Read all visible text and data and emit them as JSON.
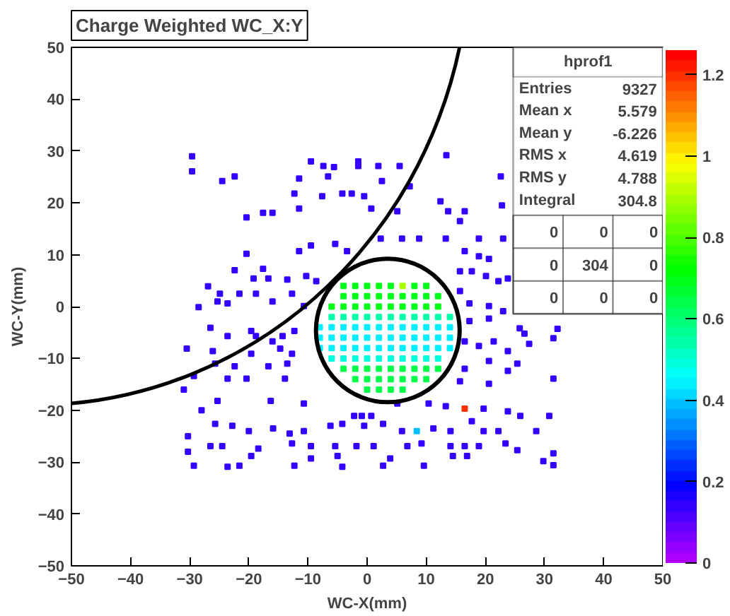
{
  "chart_data": {
    "type": "scatter",
    "title": "Charge Weighted WC_X:Y",
    "xlabel": "WC-X(mm)",
    "ylabel": "WC-Y(mm)",
    "xlim": [
      -50,
      50
    ],
    "ylim": [
      -50,
      50
    ],
    "xticks": [
      -50,
      -40,
      -30,
      -20,
      -10,
      0,
      10,
      20,
      30,
      40,
      50
    ],
    "yticks": [
      -50,
      -40,
      -30,
      -20,
      -10,
      0,
      10,
      20,
      30,
      40,
      50
    ],
    "clim": [
      0,
      1.26
    ],
    "cticks": [
      0,
      0.2,
      0.4,
      0.6,
      0.8,
      1,
      1.2
    ],
    "marker": "square",
    "annotations": [
      "hprof1",
      "Entries",
      "9327",
      "Mean x",
      "5.579",
      "Mean y",
      "-6.226",
      "RMS x",
      "4.619",
      "RMS y",
      "4.788",
      "Integral",
      "304.8",
      "0",
      "0",
      "0",
      "0",
      "304",
      "0",
      "0",
      "0",
      "0"
    ],
    "x": [
      -29.6,
      -29.6,
      -24.5,
      -22.4,
      -9.5,
      -7.4,
      -5.6,
      -1.5,
      -1.5,
      1.9,
      5.5,
      13.4,
      22.6,
      -11.5,
      -6.6,
      2.5,
      7.2,
      -12.3,
      -7.6,
      -4.2,
      -2.6,
      -0.5,
      12.4,
      13.7,
      16.5,
      22.8,
      -11.5,
      -17.6,
      -20.4,
      -16.0,
      0.7,
      5.1,
      15.7,
      2.3,
      5.9,
      8.8,
      13.3,
      18.9,
      23.0,
      -20.4,
      -11.5,
      -9.5,
      -5.4,
      -3.4,
      16.5,
      18.9,
      20.6,
      -22.4,
      -17.6,
      -19.2,
      -16.7,
      -13.5,
      -10.3,
      -8.6,
      15.7,
      17.7,
      20.1,
      22.2,
      23.8,
      -26.9,
      -24.9,
      -21.6,
      -18.8,
      -16.0,
      -12.7,
      15.7,
      17.3,
      20.6,
      -28.5,
      -25.3,
      -23.6,
      -10.7,
      17.3,
      20.6,
      23.0,
      -26.5,
      -23.6,
      -19.6,
      -18.8,
      -16.0,
      -14.3,
      -12.3,
      -30.5,
      -26.1,
      -19.6,
      -14.7,
      -12.7,
      16.5,
      18.9,
      21.4,
      20.6,
      23.8,
      -25.7,
      -22.4,
      -16.7,
      -13.5,
      16.5,
      23.8,
      -29.3,
      -23.6,
      -20.4,
      -13.9,
      15.7,
      20.6,
      -25.3,
      -16.3,
      -10.7,
      -2.2,
      -0.9,
      0.7,
      5.1,
      10.4,
      13.3,
      16.5,
      19.7,
      23.8,
      -25.7,
      -22.8,
      -20.0,
      -15.9,
      -13.1,
      -10.7,
      -6.2,
      -4.2,
      -0.5,
      2.7,
      5.9,
      8.4,
      11.2,
      14.1,
      17.7,
      19.7,
      22.2,
      -26.5,
      -24.5,
      -18.4,
      -12.7,
      -9.5,
      -5.4,
      -1.8,
      1.1,
      6.8,
      9.2,
      14.1,
      16.5,
      18.9,
      23.4,
      -19.6,
      -9.5,
      -5.0,
      3.9,
      14.5,
      16.9,
      -29.3,
      -23.6,
      -21.6,
      -12.3,
      -4.2,
      2.7,
      9.6,
      25.8,
      26.6,
      27.4,
      32.2,
      31.5,
      25.4,
      31.5,
      25.9,
      30.8,
      28.6,
      25.4,
      31.5,
      29.8,
      31.5,
      -30.3,
      -30.3,
      -28.0,
      -31.0,
      -4,
      -2,
      0,
      2,
      4,
      6,
      8,
      10,
      -4,
      -2,
      0,
      2,
      4,
      6,
      8,
      10,
      12,
      -6,
      -4,
      -2,
      0,
      2,
      4,
      6,
      8,
      10,
      12,
      -6,
      -4,
      -2,
      0,
      2,
      4,
      6,
      8,
      10,
      12,
      14,
      -8,
      -6,
      -4,
      -2,
      0,
      2,
      4,
      6,
      8,
      10,
      12,
      14,
      -8,
      -6,
      -4,
      -2,
      0,
      2,
      4,
      6,
      8,
      10,
      12,
      14,
      -8,
      -6,
      -4,
      -2,
      0,
      2,
      4,
      6,
      8,
      10,
      12,
      14,
      -6,
      -4,
      -2,
      0,
      2,
      4,
      6,
      8,
      10,
      12,
      -4,
      -2,
      0,
      2,
      4,
      6,
      8,
      10,
      12,
      -2,
      0,
      2,
      4,
      6,
      8,
      10,
      0,
      2,
      4,
      6
    ],
    "values": [
      29.0,
      26.1,
      24.2,
      25.1,
      28.0,
      27.1,
      26.9,
      28.0,
      27.1,
      27.1,
      27.1,
      29.2,
      25.1,
      24.7,
      25.1,
      24.2,
      23.2,
      21.8,
      21.3,
      21.8,
      21.8,
      21.3,
      20.3,
      18.4,
      18.4,
      19.5,
      18.9,
      18.1,
      17.2,
      18.1,
      18.9,
      18.4,
      16.5,
      13.1,
      13.1,
      13.1,
      13.1,
      13.1,
      13.1,
      10.2,
      10.7,
      11.8,
      12.1,
      10.7,
      10.7,
      9.7,
      9.2,
      7.0,
      7.3,
      5.4,
      5.4,
      5.2,
      5.9,
      4.9,
      6.8,
      6.8,
      5.9,
      4.9,
      5.4,
      3.9,
      2.5,
      2.5,
      2.5,
      1.0,
      2.5,
      3.0,
      0.6,
      0.1,
      -0.1,
      1.0,
      0.6,
      0.1,
      -2.8,
      -2.3,
      -0.9,
      -4.1,
      -5.7,
      -4.7,
      -5.7,
      -6.7,
      -5.7,
      -4.7,
      -8.1,
      -8.6,
      -9.1,
      -8.1,
      -9.1,
      -6.7,
      -7.6,
      -6.7,
      -10.5,
      -8.6,
      -11.0,
      -11.5,
      -11.5,
      -11.0,
      -12.0,
      -12.4,
      -13.4,
      -13.9,
      -13.9,
      -13.9,
      -14.4,
      -14.9,
      -18.2,
      -18.2,
      -18.7,
      -21.1,
      -21.1,
      -21.1,
      -18.7,
      -18.7,
      -19.2,
      -19.7,
      -19.7,
      -20.2,
      -22.6,
      -23.0,
      -24.0,
      -23.5,
      -24.5,
      -24.0,
      -23.0,
      -22.6,
      -23.0,
      -22.6,
      -24.0,
      -24.0,
      -23.5,
      -24.0,
      -22.1,
      -24.0,
      -24.0,
      -26.9,
      -26.9,
      -27.4,
      -26.4,
      -26.9,
      -26.9,
      -26.9,
      -26.9,
      -26.9,
      -26.4,
      -26.9,
      -26.9,
      -26.9,
      -26.4,
      -28.8,
      -29.3,
      -28.8,
      -29.3,
      -28.8,
      -28.8,
      -30.7,
      -30.9,
      -30.7,
      -30.7,
      -30.9,
      -30.7,
      -30.7,
      -4.2,
      -5.2,
      -7.2,
      -4.3,
      -6.1,
      -11.0,
      -13.9,
      -21.1,
      -21.1,
      -24.0,
      -27.7,
      -28.3,
      -29.8,
      -30.6,
      -25.0,
      -28.0,
      -20.0,
      -16.0,
      4,
      4,
      4,
      4,
      4,
      4,
      4,
      4,
      2,
      2,
      2,
      2,
      2,
      2,
      2,
      2,
      2,
      0,
      0,
      0,
      0,
      0,
      0,
      0,
      0,
      0,
      0,
      -2,
      -2,
      -2,
      -2,
      -2,
      -2,
      -2,
      -2,
      -2,
      -2,
      -2,
      -4,
      -4,
      -4,
      -4,
      -4,
      -4,
      -4,
      -4,
      -4,
      -4,
      -4,
      -4,
      -6,
      -6,
      -6,
      -6,
      -6,
      -6,
      -6,
      -6,
      -6,
      -6,
      -6,
      -6,
      -8,
      -8,
      -8,
      -8,
      -8,
      -8,
      -8,
      -8,
      -8,
      -8,
      -8,
      -8,
      -10,
      -10,
      -10,
      -10,
      -10,
      -10,
      -10,
      -10,
      -10,
      -10,
      -12,
      -12,
      -12,
      -12,
      -12,
      -12,
      -12,
      -12,
      -12,
      -14,
      -14,
      -14,
      -14,
      -14,
      -14,
      -14,
      -16,
      -16,
      -16,
      -16
    ],
    "cvalues": [
      0.15,
      0.15,
      0.15,
      0.15,
      0.15,
      0.15,
      0.15,
      0.15,
      0.15,
      0.15,
      0.15,
      0.15,
      0.15,
      0.15,
      0.15,
      0.15,
      0.15,
      0.15,
      0.15,
      0.15,
      0.15,
      0.15,
      0.15,
      0.15,
      0.15,
      0.15,
      0.15,
      0.15,
      0.15,
      0.15,
      0.15,
      0.15,
      0.15,
      0.15,
      0.15,
      0.15,
      0.15,
      0.15,
      0.15,
      0.15,
      0.15,
      0.15,
      0.15,
      0.15,
      0.15,
      0.15,
      0.15,
      0.15,
      0.15,
      0.15,
      0.15,
      0.15,
      0.15,
      0.15,
      0.15,
      0.15,
      0.15,
      0.15,
      0.15,
      0.15,
      0.15,
      0.15,
      0.15,
      0.15,
      0.15,
      0.15,
      0.15,
      0.15,
      0.15,
      0.15,
      0.15,
      0.15,
      0.15,
      0.15,
      0.15,
      0.15,
      0.15,
      0.15,
      0.15,
      0.15,
      0.15,
      0.15,
      0.15,
      0.15,
      0.15,
      0.15,
      0.15,
      0.15,
      0.15,
      0.15,
      0.15,
      0.15,
      0.15,
      0.15,
      0.15,
      0.15,
      0.15,
      0.15,
      0.15,
      0.15,
      0.15,
      0.15,
      0.15,
      0.15,
      0.15,
      0.15,
      0.15,
      0.15,
      0.15,
      0.15,
      0.15,
      0.15,
      0.15,
      1.2,
      0.15,
      0.15,
      0.15,
      0.15,
      0.15,
      0.15,
      0.15,
      0.15,
      0.15,
      0.15,
      0.15,
      0.15,
      0.15,
      0.4,
      0.15,
      0.15,
      0.15,
      0.15,
      0.15,
      0.15,
      0.15,
      0.15,
      0.15,
      0.15,
      0.15,
      0.15,
      0.15,
      0.15,
      0.15,
      0.15,
      0.15,
      0.15,
      0.15,
      0.15,
      0.15,
      0.15,
      0.15,
      0.15,
      0.15,
      0.15,
      0.15,
      0.15,
      0.15,
      0.15,
      0.15,
      0.15,
      0.15,
      0.15,
      0.15,
      0.15,
      0.15,
      0.15,
      0.15,
      0.15,
      0.15,
      0.15,
      0.15,
      0.15,
      0.15,
      0.15,
      0.15,
      0.15,
      0.15,
      0.15,
      0.7,
      0.7,
      0.7,
      0.7,
      0.7,
      0.9,
      0.7,
      0.7,
      0.7,
      0.7,
      0.7,
      0.7,
      0.7,
      0.7,
      0.7,
      0.7,
      0.7,
      0.7,
      0.7,
      0.7,
      0.7,
      0.7,
      0.7,
      0.7,
      0.7,
      0.7,
      0.7,
      0.55,
      0.55,
      0.55,
      0.55,
      0.55,
      0.55,
      0.55,
      0.55,
      0.55,
      0.55,
      0.55,
      0.45,
      0.45,
      0.45,
      0.45,
      0.45,
      0.45,
      0.45,
      0.45,
      0.45,
      0.45,
      0.45,
      0.45,
      0.45,
      0.45,
      0.45,
      0.45,
      0.45,
      0.45,
      0.45,
      0.45,
      0.45,
      0.45,
      0.45,
      0.45,
      0.45,
      0.45,
      0.45,
      0.45,
      0.45,
      0.45,
      0.45,
      0.45,
      0.45,
      0.45,
      0.45,
      0.45,
      0.5,
      0.5,
      0.5,
      0.5,
      0.5,
      0.5,
      0.5,
      0.5,
      0.5,
      0.5,
      0.65,
      0.65,
      0.65,
      0.65,
      0.65,
      0.65,
      0.65,
      0.65,
      0.65,
      0.65,
      0.65,
      0.65,
      0.65,
      0.65,
      0.65,
      0.65,
      0.65,
      0.65,
      0.65,
      0.65
    ]
  }
}
